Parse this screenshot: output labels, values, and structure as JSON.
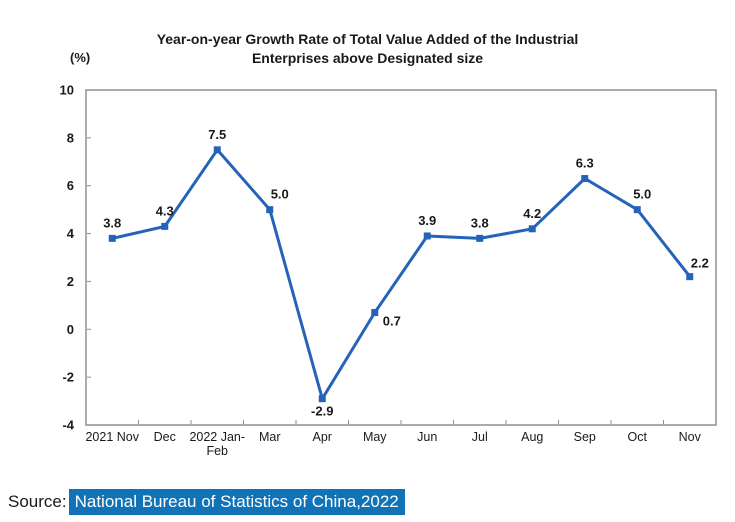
{
  "header": {
    "title_line1": "Year-on-year Growth Rate of Total Value Added of the Industrial",
    "title_line2": "Enterprises above Designated size"
  },
  "chart_data": {
    "type": "line",
    "title": "Year-on-year Growth Rate of Total Value Added of the Industrial Enterprises above Designated size",
    "xlabel": "",
    "ylabel": "(%)",
    "ylim": [
      -4,
      10
    ],
    "yticks": [
      10,
      8,
      6,
      4,
      2,
      0,
      -2,
      -4
    ],
    "grid": false,
    "legend": "none",
    "line_color": "#2563b9",
    "marker": "square",
    "border_color": "#8f8f8f",
    "categories": [
      "2021 Nov",
      "Dec",
      "2022 Jan-Feb",
      "Mar",
      "Apr",
      "May",
      "Jun",
      "Jul",
      "Aug",
      "Sep",
      "Oct",
      "Nov"
    ],
    "x_tick_lines": [
      [
        "2021 Nov"
      ],
      [
        "Dec"
      ],
      [
        "2022 Jan-",
        "Feb"
      ],
      [
        "Mar"
      ],
      [
        "Apr"
      ],
      [
        "May"
      ],
      [
        "Jun"
      ],
      [
        "Jul"
      ],
      [
        "Aug"
      ],
      [
        "Sep"
      ],
      [
        "Oct"
      ],
      [
        "Nov"
      ]
    ],
    "values": [
      3.8,
      4.3,
      7.5,
      5.0,
      -2.9,
      0.7,
      3.9,
      3.8,
      4.2,
      6.3,
      5.0,
      2.2
    ],
    "point_labels": [
      "3.8",
      "4.3",
      "7.5",
      "5.0",
      "-2.9",
      "0.7",
      "3.9",
      "3.8",
      "4.2",
      "6.3",
      "5.0",
      "2.2"
    ],
    "label_placement": [
      "above",
      "above",
      "above",
      "above-r10",
      "below",
      "right",
      "above",
      "above",
      "above",
      "above",
      "above-r5",
      "above-right"
    ]
  },
  "source": {
    "prefix": "Source:",
    "text": "National Bureau of Statistics of China,2022",
    "highlight_color": "#1073b8"
  }
}
